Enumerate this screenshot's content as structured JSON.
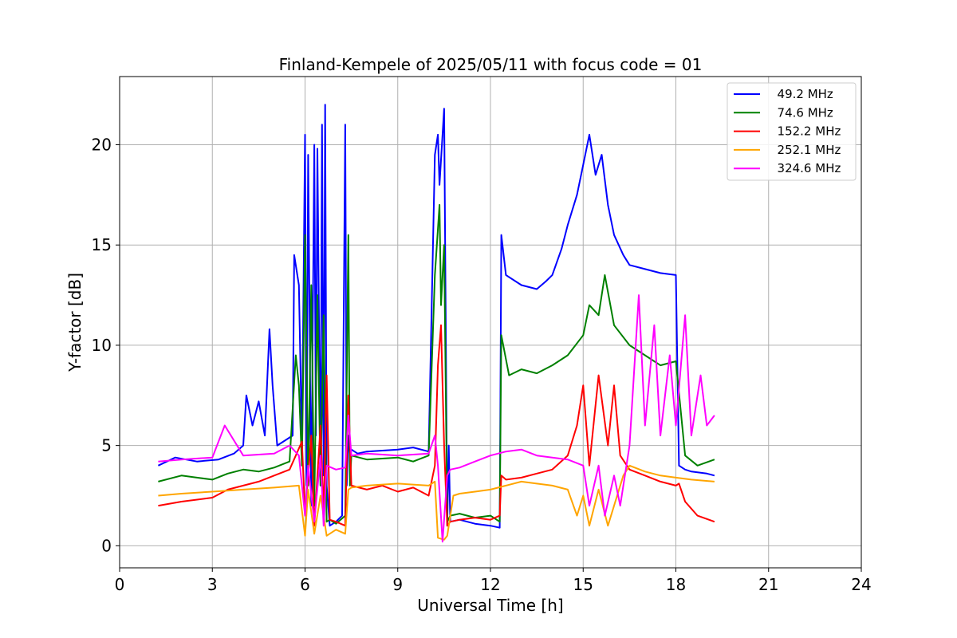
{
  "chart_data": {
    "type": "line",
    "title": "Finland-Kempele of 2025/05/11 with focus code = 01",
    "xlabel": "Universal Time [h]",
    "ylabel": "Y-factor [dB]",
    "xlim": [
      0,
      24
    ],
    "ylim": [
      -1.1,
      23.4
    ],
    "xticks": [
      0,
      3,
      6,
      9,
      12,
      15,
      18,
      21,
      24
    ],
    "yticks": [
      0,
      5,
      10,
      15,
      20
    ],
    "grid": true,
    "legend_position": "top-right",
    "series": [
      {
        "name": "  49.2 MHz",
        "color": "#0000ff",
        "x": [
          1.25,
          1.8,
          2.5,
          3.2,
          3.7,
          4.0,
          4.1,
          4.3,
          4.5,
          4.7,
          4.85,
          4.95,
          5.1,
          5.3,
          5.6,
          5.65,
          5.8,
          5.9,
          6.0,
          6.05,
          6.1,
          6.2,
          6.3,
          6.35,
          6.4,
          6.5,
          6.55,
          6.6,
          6.65,
          6.7,
          6.8,
          7.0,
          7.2,
          7.3,
          7.35,
          7.4,
          7.45,
          7.5,
          7.7,
          8.0,
          9.0,
          9.5,
          10.0,
          10.2,
          10.3,
          10.35,
          10.5,
          10.6,
          10.65,
          10.7,
          11.0,
          11.5,
          12.0,
          12.3,
          12.35,
          12.5,
          13.0,
          13.5,
          13.8,
          14.0,
          14.3,
          14.5,
          14.8,
          15.0,
          15.2,
          15.4,
          15.6,
          15.8,
          16.0,
          16.3,
          16.5,
          17.0,
          17.5,
          18.0,
          18.1,
          18.3,
          18.5,
          19.0,
          19.25
        ],
        "y": [
          4.0,
          4.4,
          4.2,
          4.3,
          4.6,
          5.0,
          7.5,
          6.0,
          7.2,
          5.5,
          10.8,
          8.0,
          5.0,
          5.2,
          5.5,
          14.5,
          13.0,
          5.0,
          20.5,
          3.0,
          19.5,
          2.0,
          20.0,
          5.5,
          19.8,
          3.0,
          21.0,
          3.5,
          22.0,
          3.0,
          1.0,
          1.2,
          1.5,
          21.0,
          3.0,
          5.5,
          4.5,
          4.8,
          4.6,
          4.7,
          4.8,
          4.9,
          4.7,
          19.5,
          20.5,
          18.0,
          21.8,
          1.0,
          5.0,
          1.2,
          1.3,
          1.1,
          1.0,
          0.9,
          15.5,
          13.5,
          13.0,
          12.8,
          13.2,
          13.5,
          14.8,
          16.0,
          17.5,
          19.0,
          20.5,
          18.5,
          19.5,
          17.0,
          15.5,
          14.5,
          14.0,
          13.8,
          13.6,
          13.5,
          4.0,
          3.8,
          3.7,
          3.6,
          3.5
        ]
      },
      {
        "name": "  74.6 MHz",
        "color": "#008000",
        "x": [
          1.25,
          2.0,
          2.5,
          3.0,
          3.5,
          4.0,
          4.5,
          5.0,
          5.5,
          5.7,
          5.8,
          5.9,
          6.0,
          6.1,
          6.2,
          6.3,
          6.4,
          6.5,
          6.6,
          6.7,
          6.8,
          7.0,
          7.3,
          7.4,
          7.45,
          7.5,
          8.0,
          9.0,
          9.5,
          10.0,
          10.2,
          10.35,
          10.4,
          10.5,
          10.6,
          10.7,
          11.0,
          11.5,
          12.0,
          12.3,
          12.35,
          12.6,
          13.0,
          13.5,
          14.0,
          14.5,
          15.0,
          15.2,
          15.5,
          15.7,
          16.0,
          16.5,
          17.0,
          17.5,
          18.0,
          18.3,
          18.7,
          19.25
        ],
        "y": [
          3.2,
          3.5,
          3.4,
          3.3,
          3.6,
          3.8,
          3.7,
          3.9,
          4.2,
          9.5,
          8.0,
          4.0,
          15.5,
          3.0,
          13.0,
          2.0,
          12.5,
          3.0,
          11.5,
          1.2,
          1.3,
          1.1,
          1.5,
          15.5,
          3.0,
          4.5,
          4.3,
          4.4,
          4.2,
          4.5,
          13.5,
          17.0,
          12.0,
          15.0,
          1.2,
          1.5,
          1.6,
          1.4,
          1.5,
          1.2,
          10.5,
          8.5,
          8.8,
          8.6,
          9.0,
          9.5,
          10.5,
          12.0,
          11.5,
          13.5,
          11.0,
          10.0,
          9.5,
          9.0,
          9.2,
          4.5,
          4.0,
          4.3
        ]
      },
      {
        "name": "  152.2 MHz",
        "color": "#ff0000",
        "x": [
          1.25,
          2.0,
          3.0,
          3.5,
          4.0,
          4.5,
          5.0,
          5.5,
          5.7,
          5.9,
          6.0,
          6.2,
          6.3,
          6.5,
          6.6,
          6.7,
          6.8,
          7.0,
          7.3,
          7.4,
          7.5,
          8.0,
          8.5,
          9.0,
          9.5,
          10.0,
          10.2,
          10.3,
          10.4,
          10.5,
          10.6,
          10.7,
          11.0,
          11.5,
          12.0,
          12.3,
          12.35,
          12.5,
          13.0,
          13.5,
          14.0,
          14.5,
          14.8,
          15.0,
          15.2,
          15.5,
          15.8,
          16.0,
          16.2,
          16.5,
          17.0,
          17.5,
          18.0,
          18.1,
          18.3,
          18.7,
          19.25
        ],
        "y": [
          2.0,
          2.2,
          2.4,
          2.8,
          3.0,
          3.2,
          3.5,
          3.8,
          4.5,
          5.2,
          1.5,
          5.5,
          1.0,
          6.0,
          1.5,
          8.5,
          1.3,
          1.2,
          1.0,
          7.5,
          3.0,
          2.8,
          3.0,
          2.7,
          2.9,
          2.5,
          4.0,
          9.0,
          11.0,
          5.0,
          1.0,
          1.2,
          1.3,
          1.4,
          1.3,
          1.5,
          3.5,
          3.3,
          3.4,
          3.6,
          3.8,
          4.5,
          6.0,
          8.0,
          4.0,
          8.5,
          5.0,
          8.0,
          4.5,
          3.8,
          3.5,
          3.2,
          3.0,
          3.1,
          2.2,
          1.5,
          1.2
        ]
      },
      {
        "name": "  252.1 MHz",
        "color": "#ffa500",
        "x": [
          1.25,
          2.0,
          3.0,
          4.0,
          5.0,
          5.8,
          6.0,
          6.1,
          6.3,
          6.5,
          6.7,
          7.0,
          7.3,
          7.4,
          7.5,
          8.0,
          9.0,
          10.0,
          10.2,
          10.3,
          10.5,
          10.6,
          10.8,
          11.0,
          11.5,
          12.0,
          12.5,
          13.0,
          13.5,
          14.0,
          14.5,
          14.8,
          15.0,
          15.2,
          15.5,
          15.8,
          16.0,
          16.3,
          16.5,
          17.0,
          17.5,
          18.0,
          18.5,
          19.25
        ],
        "y": [
          2.5,
          2.6,
          2.7,
          2.8,
          2.9,
          3.0,
          0.5,
          2.8,
          0.6,
          2.5,
          0.5,
          0.8,
          0.6,
          2.8,
          2.9,
          3.0,
          3.1,
          3.0,
          3.2,
          0.4,
          0.3,
          0.5,
          2.5,
          2.6,
          2.7,
          2.8,
          3.0,
          3.2,
          3.1,
          3.0,
          2.8,
          1.5,
          2.5,
          1.0,
          2.8,
          1.0,
          2.0,
          3.5,
          4.0,
          3.7,
          3.5,
          3.4,
          3.3,
          3.2
        ]
      },
      {
        "name": "  324.6 MHz",
        "color": "#ff00ff",
        "x": [
          1.25,
          2.0,
          3.0,
          3.4,
          4.0,
          5.0,
          5.5,
          5.8,
          6.0,
          6.1,
          6.3,
          6.5,
          6.6,
          6.7,
          7.0,
          7.3,
          7.4,
          7.5,
          8.0,
          9.0,
          10.0,
          10.2,
          10.3,
          10.45,
          10.6,
          10.7,
          11.0,
          11.5,
          12.0,
          12.5,
          13.0,
          13.5,
          14.0,
          14.5,
          15.0,
          15.2,
          15.5,
          15.7,
          16.0,
          16.2,
          16.5,
          16.8,
          17.0,
          17.3,
          17.5,
          17.8,
          18.0,
          18.3,
          18.5,
          18.8,
          19.0,
          19.25
        ],
        "y": [
          4.2,
          4.3,
          4.4,
          6.0,
          4.5,
          4.6,
          5.0,
          4.5,
          1.5,
          4.0,
          1.2,
          4.5,
          1.0,
          4.0,
          3.8,
          3.9,
          6.5,
          4.5,
          4.6,
          4.5,
          4.6,
          5.5,
          4.0,
          0.2,
          3.5,
          3.8,
          3.9,
          4.2,
          4.5,
          4.7,
          4.8,
          4.5,
          4.4,
          4.3,
          4.0,
          2.0,
          4.0,
          1.5,
          3.5,
          2.0,
          5.0,
          12.5,
          6.0,
          11.0,
          5.5,
          9.5,
          6.0,
          11.5,
          5.5,
          8.5,
          6.0,
          6.5
        ]
      }
    ]
  }
}
